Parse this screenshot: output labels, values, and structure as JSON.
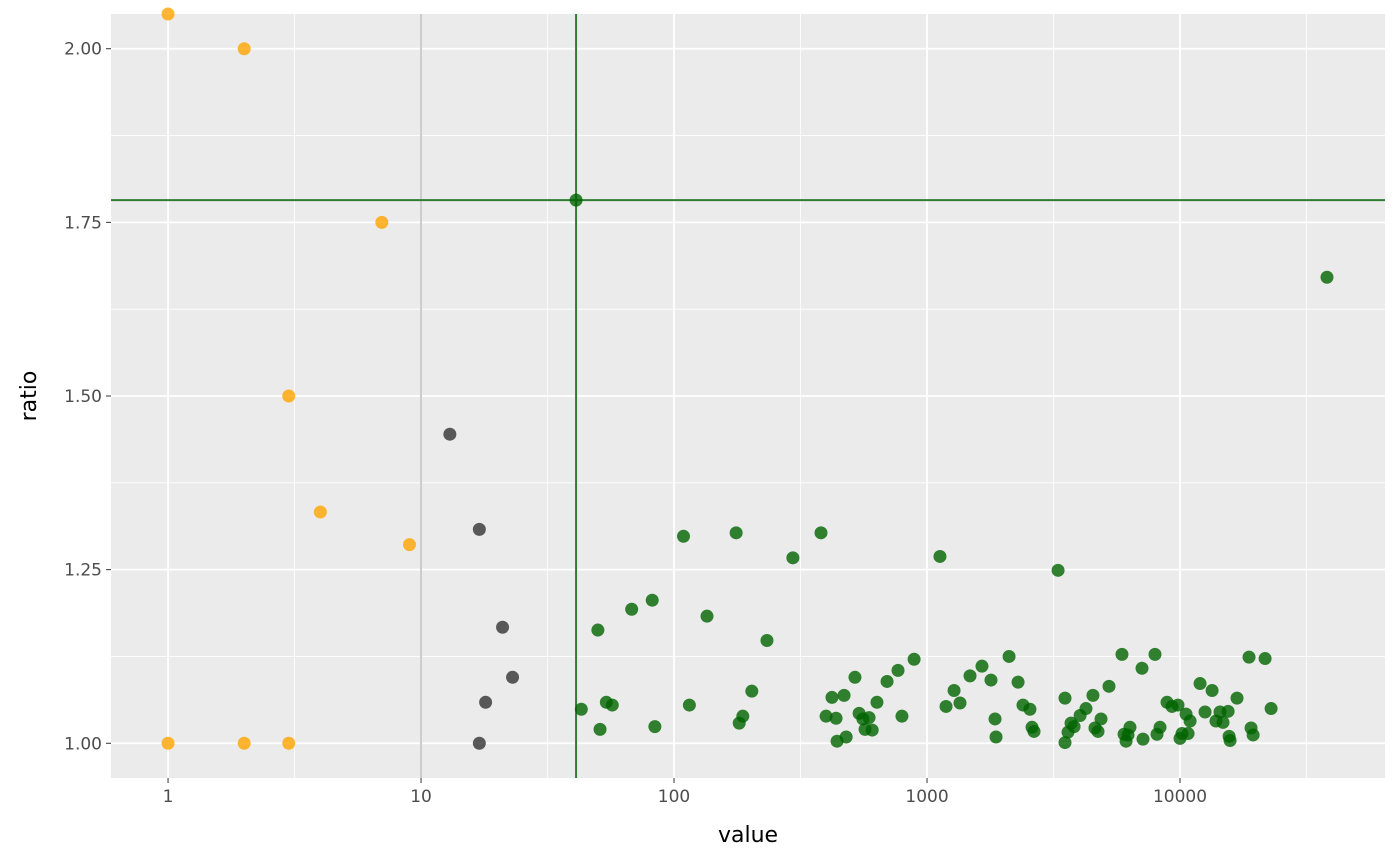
{
  "chart_data": {
    "type": "scatter",
    "x_label": "value",
    "y_label": "ratio",
    "x_scale": "log",
    "grid": true,
    "background": "#ebebeb",
    "xlim": [
      0.595,
      64600
    ],
    "ylim": [
      0.95,
      2.05
    ],
    "xticks": [
      1,
      10,
      100,
      1000,
      10000
    ],
    "xminor": [
      3.162,
      31.62,
      316.2,
      3162,
      31623
    ],
    "yticks": [
      {
        "value": 1,
        "label": "1.00"
      },
      {
        "value": 1.25,
        "label": "1.25"
      },
      {
        "value": 1.5,
        "label": "1.50"
      },
      {
        "value": 1.75,
        "label": "1.75"
      },
      {
        "value": 2,
        "label": "2.00"
      }
    ],
    "yminor": [
      1.125,
      1.375,
      1.625,
      1.875
    ],
    "reference_lines": [
      {
        "x": 10,
        "color": "#cccccc"
      },
      {
        "x": 41,
        "color": "#2e7d32"
      },
      {
        "y": 1.782,
        "color": "#2e7d32"
      }
    ],
    "series": [
      {
        "color": "#ffa500",
        "x": [
          1,
          2,
          7,
          3,
          4,
          9,
          1,
          2,
          3
        ],
        "values": [
          2.05,
          2.0,
          1.75,
          1.5,
          1.333,
          1.286,
          1.0,
          1.0,
          1.0
        ]
      },
      {
        "color": "#333333",
        "x": [
          13,
          17,
          21,
          18,
          23,
          17
        ],
        "values": [
          1.445,
          1.308,
          1.167,
          1.059,
          1.095,
          1.0
        ]
      },
      {
        "color": "#006400",
        "x": [
          41,
          38100,
          43,
          50,
          51,
          54,
          57,
          68,
          82,
          84,
          109,
          115,
          135,
          176,
          181,
          187,
          203,
          233,
          295,
          381,
          399,
          421,
          437,
          441,
          470,
          479,
          519,
          539,
          558,
          569,
          590,
          607,
          634,
          695,
          768,
          796,
          889,
          1125,
          1189,
          1279,
          1350,
          1479,
          1649,
          1790,
          1857,
          1874,
          2110,
          2290,
          2395,
          2552,
          2600,
          2648,
          3296,
          3511,
          3511,
          3608,
          3709,
          3812,
          4028,
          4249,
          4527,
          4611,
          4740,
          4873,
          5240,
          5896,
          6009,
          6120,
          6228,
          6342,
          7076,
          7140,
          7963,
          8110,
          8337,
          8885,
          9296,
          9817,
          10000,
          10183,
          10566,
          10760,
          10960,
          12000,
          12560,
          13390,
          13870,
          14390,
          14790,
          15490,
          15630,
          15770,
          16800,
          18740,
          19090,
          19450,
          21690,
          22910
        ],
        "values": [
          1.782,
          1.671,
          1.049,
          1.163,
          1.02,
          1.059,
          1.055,
          1.193,
          1.206,
          1.024,
          1.298,
          1.055,
          1.183,
          1.303,
          1.029,
          1.039,
          1.075,
          1.148,
          1.267,
          1.303,
          1.039,
          1.066,
          1.036,
          1.003,
          1.069,
          1.009,
          1.095,
          1.043,
          1.035,
          1.02,
          1.037,
          1.019,
          1.059,
          1.089,
          1.105,
          1.039,
          1.121,
          1.269,
          1.053,
          1.076,
          1.058,
          1.097,
          1.111,
          1.091,
          1.035,
          1.009,
          1.125,
          1.088,
          1.055,
          1.049,
          1.023,
          1.017,
          1.249,
          1.065,
          1.001,
          1.016,
          1.029,
          1.024,
          1.04,
          1.05,
          1.069,
          1.022,
          1.017,
          1.035,
          1.082,
          1.128,
          1.013,
          1.003,
          1.012,
          1.023,
          1.108,
          1.006,
          1.128,
          1.013,
          1.023,
          1.059,
          1.053,
          1.055,
          1.007,
          1.014,
          1.042,
          1.014,
          1.032,
          1.086,
          1.045,
          1.076,
          1.032,
          1.045,
          1.03,
          1.046,
          1.01,
          1.004,
          1.065,
          1.124,
          1.022,
          1.012,
          1.122,
          1.05
        ]
      }
    ]
  }
}
